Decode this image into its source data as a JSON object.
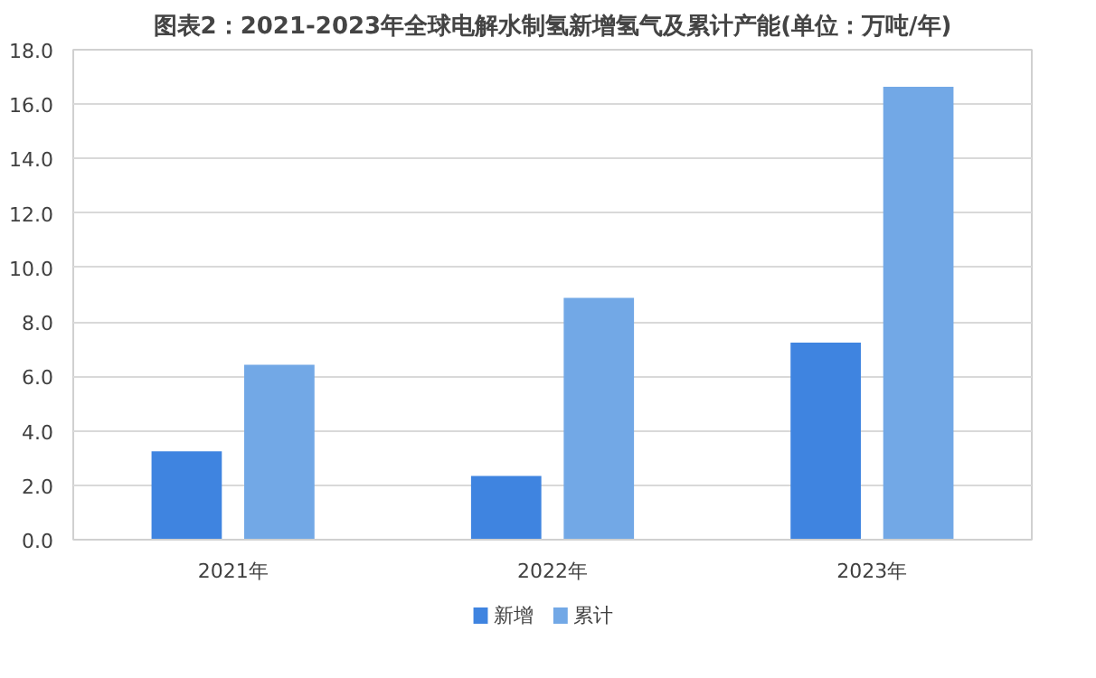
{
  "chart_data": {
    "type": "bar",
    "title": "图表2：2021-2023年全球电解水制氢新增氢气及累计产能(单位：万吨/年)",
    "categories": [
      "2021年",
      "2022年",
      "2023年"
    ],
    "series": [
      {
        "name": "新增",
        "color": "#3f84e0",
        "values": [
          3.25,
          2.34,
          7.24
        ]
      },
      {
        "name": "累计",
        "color": "#72a8e6",
        "values": [
          6.43,
          8.88,
          16.64
        ]
      }
    ],
    "ylim": [
      0,
      18
    ],
    "yticks": [
      {
        "value": 0,
        "label": "0.0"
      },
      {
        "value": 2,
        "label": "2.0"
      },
      {
        "value": 4,
        "label": "4.0"
      },
      {
        "value": 6,
        "label": "6.0"
      },
      {
        "value": 8,
        "label": "8.0"
      },
      {
        "value": 10,
        "label": "10.0"
      },
      {
        "value": 12,
        "label": "12.0"
      },
      {
        "value": 14,
        "label": "14.0"
      },
      {
        "value": 16,
        "label": "16.0"
      },
      {
        "value": 18,
        "label": "18.0"
      }
    ],
    "grid": "y",
    "legend": "bottom"
  }
}
